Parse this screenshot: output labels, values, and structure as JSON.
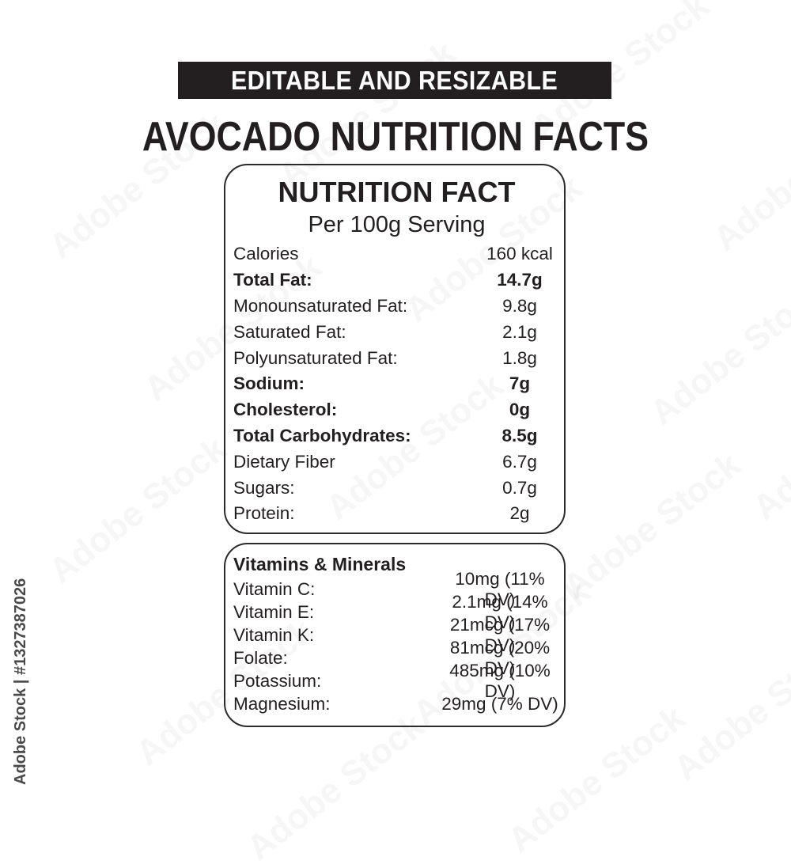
{
  "banner": {
    "label": "EDITABLE AND RESIZABLE"
  },
  "heading": "AVOCADO NUTRITION FACTS",
  "nutrition_box": {
    "title": "NUTRITION FACT",
    "subtitle": "Per 100g Serving",
    "rows": [
      {
        "label": "Calories",
        "value": "160 kcal",
        "bold": false
      },
      {
        "label": "Total Fat:",
        "value": "14.7g",
        "bold": true
      },
      {
        "label": "Monounsaturated Fat:",
        "value": "9.8g",
        "bold": false
      },
      {
        "label": "Saturated Fat:",
        "value": "2.1g",
        "bold": false
      },
      {
        "label": "Polyunsaturated Fat:",
        "value": "1.8g",
        "bold": false
      },
      {
        "label": "Sodium:",
        "value": "7g",
        "bold": true
      },
      {
        "label": "Cholesterol:",
        "value": "0g",
        "bold": true
      },
      {
        "label": "Total Carbohydrates:",
        "value": "8.5g",
        "bold": true
      },
      {
        "label": "Dietary Fiber",
        "value": "6.7g",
        "bold": false
      },
      {
        "label": "Sugars:",
        "value": "0.7g",
        "bold": false
      },
      {
        "label": "Protein:",
        "value": "2g",
        "bold": false
      }
    ]
  },
  "vitamins_box": {
    "title": "Vitamins & Minerals",
    "rows": [
      {
        "label": "Vitamin C:",
        "value": "10mg (11% DV)"
      },
      {
        "label": "Vitamin E:",
        "value": "2.1mg (14% DV)"
      },
      {
        "label": "Vitamin K:",
        "value": "21mcg (17% DV)"
      },
      {
        "label": "Folate:",
        "value": "81mcg (20% DV)"
      },
      {
        "label": "Potassium:",
        "value": "485mg (10% DV)"
      },
      {
        "label": "Magnesium:",
        "value": "29mg (7% DV)"
      }
    ]
  },
  "watermark": {
    "tile_text": "Adobe Stock",
    "credit": "Adobe Stock | #1327387026"
  },
  "colors": {
    "banner_bg": "#231f20",
    "text": "#231f20",
    "border": "#2b2b2b"
  }
}
